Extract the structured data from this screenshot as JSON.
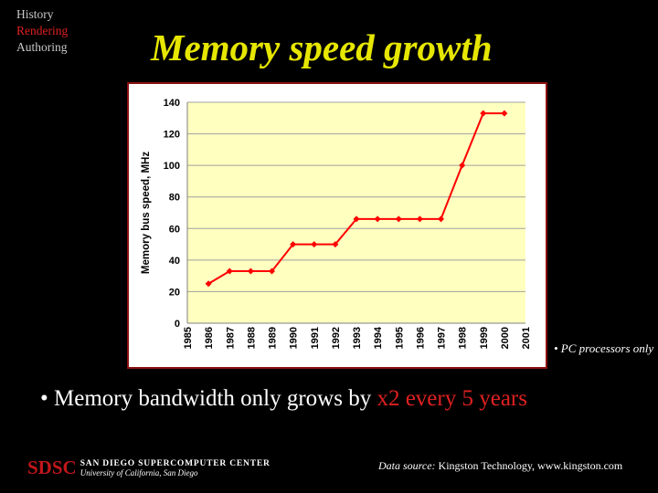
{
  "nav": {
    "items": [
      "History",
      "Rendering",
      "Authoring"
    ],
    "active_index": 1
  },
  "slide": {
    "title": "Memory speed growth",
    "side_note": "• PC processors only",
    "bullet_prefix": "• Memory bandwidth only grows by ",
    "bullet_highlight": "x2 every 5 years"
  },
  "footer": {
    "logo_abbr": "SDSC",
    "logo_line1": "SAN DIEGO SUPERCOMPUTER CENTER",
    "logo_line2": "University of California, San Diego",
    "source_label": "Data source:",
    "source_text": "Kingston Technology, www.kingston.com"
  },
  "colors": {
    "title": "#e6e600",
    "accent_red": "#e02020",
    "plot_bg": "#ffffc0",
    "line": "#ff0000",
    "frame": "#8a1010"
  },
  "chart_data": {
    "type": "line",
    "title": "",
    "xlabel": "",
    "ylabel": "Memory bus speed, MHz",
    "categories": [
      "1985",
      "1986",
      "1987",
      "1988",
      "1989",
      "1990",
      "1991",
      "1992",
      "1993",
      "1994",
      "1995",
      "1996",
      "1997",
      "1998",
      "1999",
      "2000",
      "2001"
    ],
    "series": [
      {
        "values": [
          null,
          25,
          33,
          33,
          33,
          50,
          50,
          50,
          66,
          66,
          66,
          66,
          66,
          100,
          133,
          133,
          null
        ]
      }
    ],
    "ylim": [
      0,
      140
    ],
    "yticks": [
      0,
      20,
      40,
      60,
      80,
      100,
      120,
      140
    ],
    "grid": true,
    "legend": "none"
  }
}
